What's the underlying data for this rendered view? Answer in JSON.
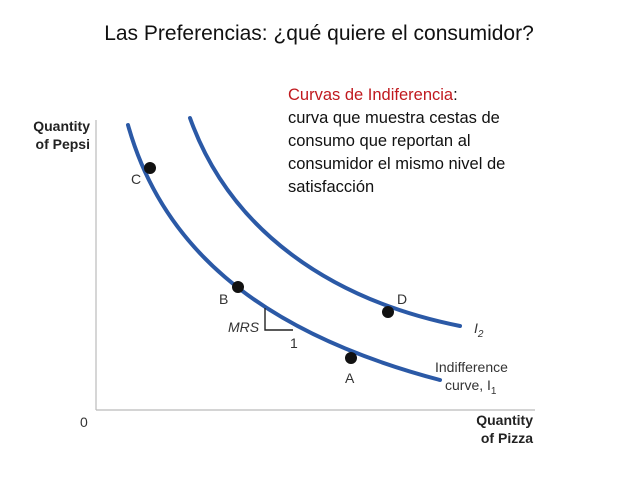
{
  "title": "Las Preferencias:  ¿qué quiere el consumidor?",
  "definition": {
    "term": "Curvas de Indiferencia",
    "colon": ":",
    "lines": [
      "curva que muestra cestas de",
      "consumo que reportan al",
      "consumidor el mismo nivel de",
      "satisfacción"
    ]
  },
  "axes": {
    "y_label_line1": "Quantity",
    "y_label_line2": "of Pepsi",
    "x_label_line1": "Quantity",
    "x_label_line2": "of Pizza",
    "origin": "0"
  },
  "curves": {
    "i1_label_line1": "Indifference",
    "i1_label_line2": "curve, I",
    "i1_subscript": "1",
    "i2_label": "I",
    "i2_subscript": "2"
  },
  "points": {
    "a": "A",
    "b": "B",
    "c": "C",
    "d": "D"
  },
  "mrs": {
    "label": "MRS",
    "one": "1"
  },
  "colors": {
    "curve": "#2b59a6",
    "term": "#c0191e",
    "axis": "#bbbbbb"
  }
}
